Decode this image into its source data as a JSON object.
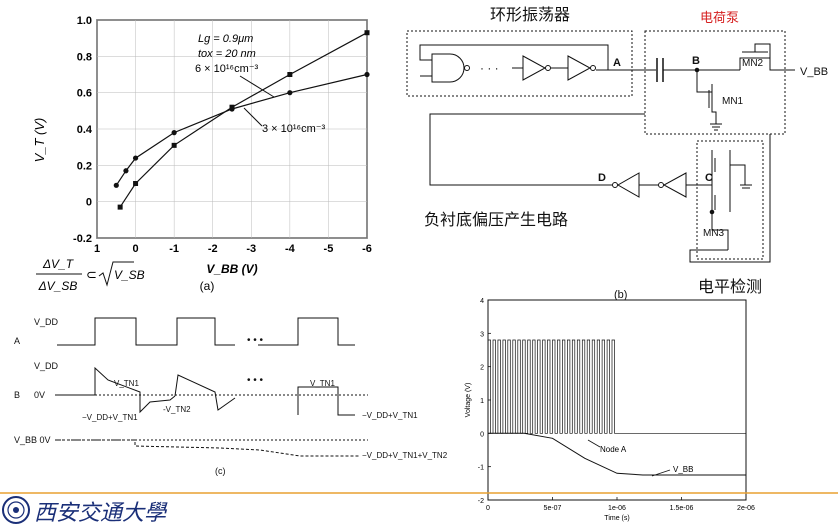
{
  "chart_a": {
    "label": "(a)",
    "ylabel": "V_T (V)",
    "xlabel": "V_BB (V)",
    "x_ticks": [
      "1",
      "0",
      "-1",
      "-2",
      "-3",
      "-4",
      "-5",
      "-6"
    ],
    "y_ticks": [
      "1.0",
      "0.8",
      "0.6",
      "0.4",
      "0.2",
      "0",
      "-0.2"
    ],
    "param_lg": "Lg = 0.9μm",
    "param_tox": "tox = 20 nm",
    "label_6e16": "6 × 10¹⁶cm⁻³",
    "label_3e16": "3 × 10¹⁶cm⁻³",
    "formula_num": "ΔV_T",
    "formula_den": "ΔV_SB",
    "formula_rel": "⊂",
    "formula_sqrt": "V_SB"
  },
  "chart_data": [
    {
      "type": "line",
      "title": "",
      "xlabel": "V_BB (V)",
      "ylabel": "V_T (V)",
      "xlim": [
        1,
        -6
      ],
      "ylim": [
        -0.2,
        1.0
      ],
      "series": [
        {
          "name": "6 × 10¹⁶cm⁻³",
          "x": [
            0.4,
            0,
            -1,
            -2.5,
            -4,
            -6
          ],
          "y": [
            -0.03,
            0.1,
            0.31,
            0.52,
            0.7,
            0.93
          ]
        },
        {
          "name": "3 × 10¹⁶cm⁻³",
          "x": [
            0.5,
            0.25,
            0,
            -1,
            -2.5,
            -4,
            -6
          ],
          "y": [
            0.09,
            0.17,
            0.24,
            0.38,
            0.51,
            0.6,
            0.7
          ]
        }
      ]
    },
    {
      "type": "line",
      "title": "",
      "xlabel": "Time (s)",
      "ylabel": "Voltage (V)",
      "xlim": [
        0,
        2e-06
      ],
      "ylim": [
        -2,
        4
      ],
      "series": [
        {
          "name": "Node A",
          "x": [
            0,
            1e-06,
            1e-06,
            2e-06
          ],
          "y": [
            2.8,
            2.8,
            0,
            0
          ]
        },
        {
          "name": "V_BB",
          "x": [
            0,
            2.8e-07,
            5e-07,
            7.5e-07,
            1e-06,
            1.2e-06,
            2e-06
          ],
          "y": [
            0,
            0,
            -0.15,
            -0.75,
            -1.2,
            -1.25,
            -1.25
          ]
        }
      ]
    }
  ],
  "chart_sim": {
    "ylabel": "Voltage (V)",
    "xlabel": "Time (s)",
    "x_ticks": [
      "0",
      "5e-07",
      "1e-06",
      "1.5e-06",
      "2e-06"
    ],
    "y_ticks": [
      "4",
      "3",
      "2",
      "1",
      "0",
      "-1",
      "-2"
    ],
    "label_node_a": "Node A",
    "label_vbb": "V_BB",
    "caption": "电平检测"
  },
  "circuit": {
    "label": "(b)",
    "title_osc": "环形振荡器",
    "title_pump": "电荷泵",
    "node_a": "A",
    "node_b": "B",
    "node_c": "C",
    "node_d": "D",
    "mn1": "MN1",
    "mn2": "MN2",
    "mn3": "MN3",
    "vbb": "V_BB",
    "dots": "· · ·",
    "title_neg": "负衬底偏压产生电路"
  },
  "waveform": {
    "label": "(c)",
    "vdd": "V_DD",
    "row_a": "A",
    "row_b": "B",
    "ov": "0V",
    "vbb_ov": "V_BB 0V",
    "vtn1": "V_TN1",
    "vtn1_b": "V_TN1",
    "vtn2": "-V_TN2",
    "ann_left": "−V_DD+V_TN1",
    "ann_right": "−V_DD+V_TN1",
    "ann_bottom": "−V_DD+V_TN1+V_TN2",
    "dots": "• • •"
  },
  "footer": {
    "university": "西安交通大學"
  },
  "colors": {
    "ink": "#111111",
    "accent": "#d62020",
    "footer_line": "#e8a030",
    "caption_blue": "#1a3a8c",
    "logo_blue": "#1a2f78"
  }
}
